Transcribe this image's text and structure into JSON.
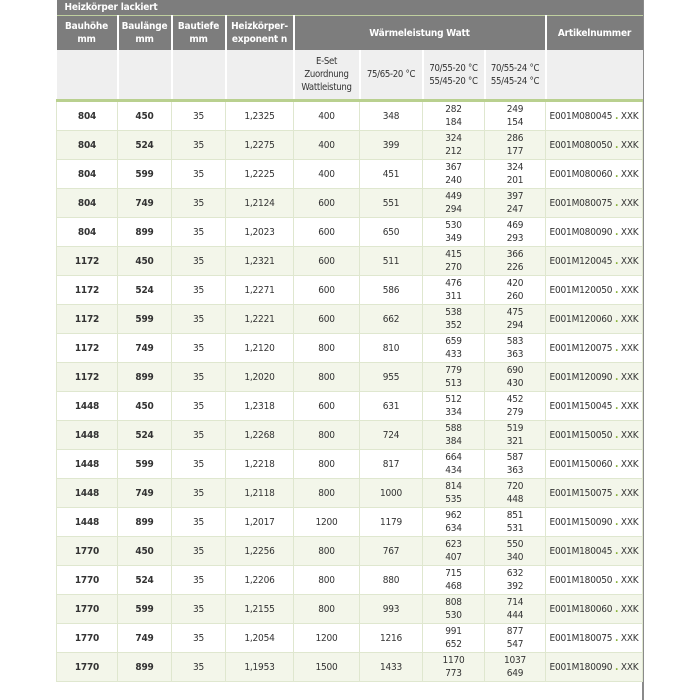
{
  "title": "Heizkörper lackiert",
  "headers": {
    "bauhoehe": [
      "Bauhöhe",
      "mm"
    ],
    "baulaenge": [
      "Baulänge",
      "mm"
    ],
    "bautiefe": [
      "Bautiefe",
      "mm"
    ],
    "exponent": [
      "Heizkörper-",
      "exponent n"
    ],
    "waerme": "Wärmeleistung Watt",
    "artikel": "Artikelnummer"
  },
  "subheaders": {
    "eset": [
      "E-Set",
      "Zuordnung",
      "Wattleistung"
    ],
    "t1": "75/65-20 °C",
    "t2": [
      "70/55-20 °C",
      "55/45-20 °C"
    ],
    "t3": [
      "70/55-24 °C",
      "55/45-24 °C"
    ]
  },
  "accent": "#8cb43c",
  "rows": [
    {
      "h": "804",
      "l": "450",
      "t": "35",
      "n": "1,2325",
      "e": "400",
      "w1": "348",
      "w2a": "282",
      "w2b": "184",
      "w3a": "249",
      "w3b": "154",
      "art": "E001M080045",
      "sep": ".",
      "suf": "XXK"
    },
    {
      "h": "804",
      "l": "524",
      "t": "35",
      "n": "1,2275",
      "e": "400",
      "w1": "399",
      "w2a": "324",
      "w2b": "212",
      "w3a": "286",
      "w3b": "177",
      "art": "E001M080050",
      "sep": ".",
      "suf": "XXK"
    },
    {
      "h": "804",
      "l": "599",
      "t": "35",
      "n": "1,2225",
      "e": "400",
      "w1": "451",
      "w2a": "367",
      "w2b": "240",
      "w3a": "324",
      "w3b": "201",
      "art": "E001M080060",
      "sep": ".",
      "suf": "XXK"
    },
    {
      "h": "804",
      "l": "749",
      "t": "35",
      "n": "1,2124",
      "e": "600",
      "w1": "551",
      "w2a": "449",
      "w2b": "294",
      "w3a": "397",
      "w3b": "247",
      "art": "E001M080075",
      "sep": ".",
      "suf": "XXK"
    },
    {
      "h": "804",
      "l": "899",
      "t": "35",
      "n": "1,2023",
      "e": "600",
      "w1": "650",
      "w2a": "530",
      "w2b": "349",
      "w3a": "469",
      "w3b": "293",
      "art": "E001M080090",
      "sep": ".",
      "suf": "XXK"
    },
    {
      "h": "1172",
      "l": "450",
      "t": "35",
      "n": "1,2321",
      "e": "600",
      "w1": "511",
      "w2a": "415",
      "w2b": "270",
      "w3a": "366",
      "w3b": "226",
      "art": "E001M120045",
      "sep": ".",
      "suf": "XXK"
    },
    {
      "h": "1172",
      "l": "524",
      "t": "35",
      "n": "1,2271",
      "e": "600",
      "w1": "586",
      "w2a": "476",
      "w2b": "311",
      "w3a": "420",
      "w3b": "260",
      "art": "E001M120050",
      "sep": ".",
      "suf": "XXK"
    },
    {
      "h": "1172",
      "l": "599",
      "t": "35",
      "n": "1,2221",
      "e": "600",
      "w1": "662",
      "w2a": "538",
      "w2b": "352",
      "w3a": "475",
      "w3b": "294",
      "art": "E001M120060",
      "sep": ".",
      "suf": "XXK"
    },
    {
      "h": "1172",
      "l": "749",
      "t": "35",
      "n": "1,2120",
      "e": "800",
      "w1": "810",
      "w2a": "659",
      "w2b": "433",
      "w3a": "583",
      "w3b": "363",
      "art": "E001M120075",
      "sep": ".",
      "suf": "XXK"
    },
    {
      "h": "1172",
      "l": "899",
      "t": "35",
      "n": "1,2020",
      "e": "800",
      "w1": "955",
      "w2a": "779",
      "w2b": "513",
      "w3a": "690",
      "w3b": "430",
      "art": "E001M120090",
      "sep": ".",
      "suf": "XXK"
    },
    {
      "h": "1448",
      "l": "450",
      "t": "35",
      "n": "1,2318",
      "e": "600",
      "w1": "631",
      "w2a": "512",
      "w2b": "334",
      "w3a": "452",
      "w3b": "279",
      "art": "E001M150045",
      "sep": ".",
      "suf": "XXK"
    },
    {
      "h": "1448",
      "l": "524",
      "t": "35",
      "n": "1,2268",
      "e": "800",
      "w1": "724",
      "w2a": "588",
      "w2b": "384",
      "w3a": "519",
      "w3b": "321",
      "art": "E001M150050",
      "sep": ".",
      "suf": "XXK"
    },
    {
      "h": "1448",
      "l": "599",
      "t": "35",
      "n": "1,2218",
      "e": "800",
      "w1": "817",
      "w2a": "664",
      "w2b": "434",
      "w3a": "587",
      "w3b": "363",
      "art": "E001M150060",
      "sep": ".",
      "suf": "XXK"
    },
    {
      "h": "1448",
      "l": "749",
      "t": "35",
      "n": "1,2118",
      "e": "800",
      "w1": "1000",
      "w2a": "814",
      "w2b": "535",
      "w3a": "720",
      "w3b": "448",
      "art": "E001M150075",
      "sep": ".",
      "suf": "XXK"
    },
    {
      "h": "1448",
      "l": "899",
      "t": "35",
      "n": "1,2017",
      "e": "1200",
      "w1": "1179",
      "w2a": "962",
      "w2b": "634",
      "w3a": "851",
      "w3b": "531",
      "art": "E001M150090",
      "sep": ".",
      "suf": "XXK"
    },
    {
      "h": "1770",
      "l": "450",
      "t": "35",
      "n": "1,2256",
      "e": "800",
      "w1": "767",
      "w2a": "623",
      "w2b": "407",
      "w3a": "550",
      "w3b": "340",
      "art": "E001M180045",
      "sep": ".",
      "suf": "XXK"
    },
    {
      "h": "1770",
      "l": "524",
      "t": "35",
      "n": "1,2206",
      "e": "800",
      "w1": "880",
      "w2a": "715",
      "w2b": "468",
      "w3a": "632",
      "w3b": "392",
      "art": "E001M180050",
      "sep": ".",
      "suf": "XXK"
    },
    {
      "h": "1770",
      "l": "599",
      "t": "35",
      "n": "1,2155",
      "e": "800",
      "w1": "993",
      "w2a": "808",
      "w2b": "530",
      "w3a": "714",
      "w3b": "444",
      "art": "E001M180060",
      "sep": ".",
      "suf": "XXK"
    },
    {
      "h": "1770",
      "l": "749",
      "t": "35",
      "n": "1,2054",
      "e": "1200",
      "w1": "1216",
      "w2a": "991",
      "w2b": "652",
      "w3a": "877",
      "w3b": "547",
      "art": "E001M180075",
      "sep": ".",
      "suf": "XXK"
    },
    {
      "h": "1770",
      "l": "899",
      "t": "35",
      "n": "1,1953",
      "e": "1500",
      "w1": "1433",
      "w2a": "1170",
      "w2b": "773",
      "w3a": "1037",
      "w3b": "649",
      "art": "E001M180090",
      "sep": ".",
      "suf": "XXK"
    }
  ]
}
